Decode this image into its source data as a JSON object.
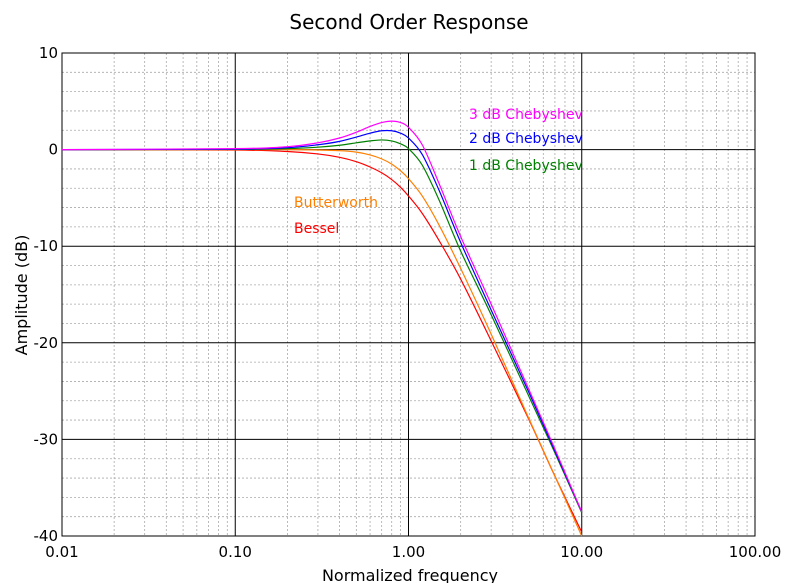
{
  "chart_data": {
    "type": "line",
    "title": "Second Order Response",
    "xlabel": "Normalized frequency",
    "ylabel": "Amplitude (dB)",
    "xscale": "log",
    "xlim": [
      0.01,
      100
    ],
    "ylim": [
      -40,
      10
    ],
    "grid": true,
    "x_ticks": [
      "0.01",
      "0.10",
      "1.00",
      "10.00",
      "100.00"
    ],
    "y_ticks": [
      "10",
      "0",
      "-10",
      "-20",
      "-30",
      "-40"
    ],
    "series": [
      {
        "name": "3 dB Chebyshev",
        "color": "#ff00ff",
        "x": [
          0.01,
          0.1,
          0.2,
          0.3,
          0.4,
          0.5,
          0.6,
          0.7,
          0.8,
          0.9,
          1.0,
          1.2,
          1.5,
          2,
          3,
          5,
          7,
          10
        ],
        "y": [
          0,
          0.1,
          0.3,
          0.7,
          1.2,
          1.8,
          2.4,
          2.8,
          2.95,
          2.8,
          2.3,
          0.5,
          -3.5,
          -9,
          -16,
          -25,
          -31,
          -37.5
        ]
      },
      {
        "name": "2 dB Chebyshev",
        "color": "#0000ff",
        "x": [
          0.01,
          0.1,
          0.2,
          0.3,
          0.4,
          0.5,
          0.6,
          0.7,
          0.8,
          0.9,
          1.0,
          1.2,
          1.5,
          2,
          3,
          5,
          7,
          10
        ],
        "y": [
          0,
          0.05,
          0.2,
          0.5,
          0.85,
          1.3,
          1.7,
          1.95,
          1.95,
          1.7,
          1.2,
          -0.5,
          -4.2,
          -9.6,
          -16.6,
          -25.3,
          -31.2,
          -37.5
        ]
      },
      {
        "name": "1 dB Chebyshev",
        "color": "#008000",
        "x": [
          0.01,
          0.1,
          0.2,
          0.3,
          0.4,
          0.5,
          0.6,
          0.7,
          0.8,
          0.9,
          1.0,
          1.2,
          1.5,
          2,
          3,
          5,
          7,
          10
        ],
        "y": [
          0,
          0.02,
          0.1,
          0.25,
          0.45,
          0.7,
          0.9,
          1.0,
          0.9,
          0.6,
          0.1,
          -1.6,
          -5.2,
          -10.5,
          -17.1,
          -25.7,
          -31.4,
          -37.6
        ]
      },
      {
        "name": "Butterworth",
        "color": "#ff7f00",
        "x": [
          0.01,
          0.1,
          0.2,
          0.3,
          0.4,
          0.5,
          0.6,
          0.7,
          0.8,
          0.9,
          1.0,
          1.2,
          1.5,
          2,
          3,
          5,
          7,
          10
        ],
        "y": [
          0,
          0,
          0,
          -0.04,
          -0.11,
          -0.26,
          -0.55,
          -0.96,
          -1.5,
          -2.2,
          -3.0,
          -4.8,
          -7.8,
          -12.3,
          -19.1,
          -28.0,
          -33.8,
          -40
        ]
      },
      {
        "name": "Bessel",
        "color": "#ff0000",
        "x": [
          0.01,
          0.1,
          0.2,
          0.3,
          0.4,
          0.5,
          0.6,
          0.7,
          0.8,
          0.9,
          1.0,
          1.2,
          1.5,
          2,
          3,
          5,
          7,
          10
        ],
        "y": [
          0,
          -0.05,
          -0.2,
          -0.45,
          -0.8,
          -1.25,
          -1.8,
          -2.4,
          -3.1,
          -3.9,
          -4.8,
          -6.6,
          -9.4,
          -13.4,
          -19.8,
          -28.1,
          -33.8,
          -39.6
        ]
      }
    ]
  }
}
